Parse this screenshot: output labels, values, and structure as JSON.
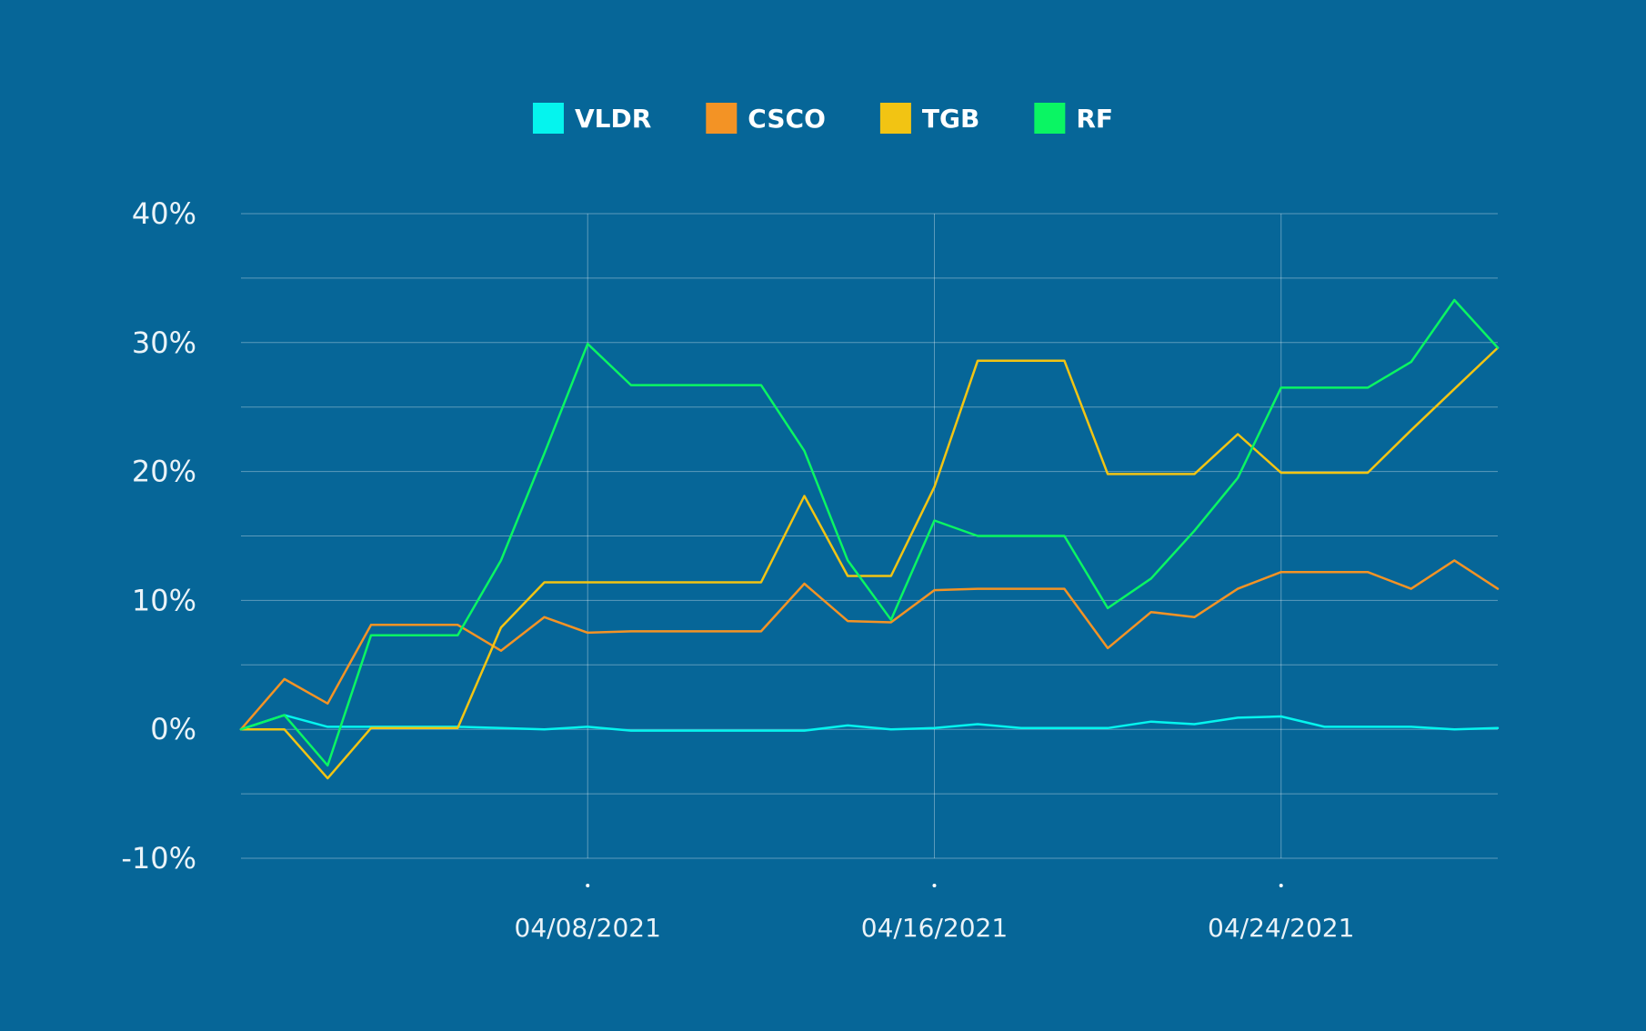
{
  "chart_data": {
    "type": "line",
    "title": "",
    "xlabel": "",
    "ylabel": "",
    "x": [
      "03/31/2021",
      "04/01/2021",
      "04/02/2021",
      "04/03/2021",
      "04/04/2021",
      "04/05/2021",
      "04/06/2021",
      "04/07/2021",
      "04/08/2021",
      "04/09/2021",
      "04/10/2021",
      "04/11/2021",
      "04/12/2021",
      "04/13/2021",
      "04/14/2021",
      "04/15/2021",
      "04/16/2021",
      "04/17/2021",
      "04/18/2021",
      "04/19/2021",
      "04/20/2021",
      "04/21/2021",
      "04/22/2021",
      "04/23/2021",
      "04/24/2021",
      "04/25/2021",
      "04/26/2021",
      "04/27/2021",
      "04/28/2021",
      "04/29/2021"
    ],
    "x_ticks": [
      "04/08/2021",
      "04/16/2021",
      "04/24/2021"
    ],
    "x_tick_labels": [
      "04/08/2021",
      "04/16/2021",
      "04/24/2021"
    ],
    "y_ticks": [
      40,
      30,
      20,
      10,
      0,
      -10
    ],
    "y_tick_labels": [
      "40%",
      "30%",
      "20%",
      "10%",
      "0%",
      "-10%"
    ],
    "ylim": [
      -10,
      40
    ],
    "grid": true,
    "legend_position": "top",
    "series": [
      {
        "name": "VLDR",
        "color": "#05f4ee",
        "values": [
          0,
          1.1,
          0.2,
          0.2,
          0.2,
          0.2,
          0.1,
          0,
          0.2,
          -0.1,
          -0.1,
          -0.1,
          -0.1,
          -0.1,
          0.3,
          0,
          0.1,
          0.4,
          0.1,
          0.1,
          0.1,
          0.6,
          0.4,
          0.9,
          1,
          0.2,
          0.2,
          0.2,
          0,
          0.1
        ]
      },
      {
        "name": "CSCO",
        "color": "#f39325",
        "values": [
          0,
          3.9,
          2.0,
          8.1,
          8.1,
          8.1,
          6.1,
          8.7,
          7.5,
          7.6,
          7.6,
          7.6,
          7.6,
          11.3,
          8.4,
          8.3,
          10.8,
          10.9,
          10.9,
          10.9,
          6.3,
          9.1,
          8.7,
          10.9,
          12.2,
          12.2,
          12.2,
          10.9,
          13.1,
          10.9
        ]
      },
      {
        "name": "TGB",
        "color": "#f2c413",
        "values": [
          0,
          0,
          -3.8,
          0.1,
          0.1,
          0.1,
          7.9,
          11.4,
          11.4,
          11.4,
          11.4,
          11.4,
          11.4,
          18.1,
          11.9,
          11.9,
          18.8,
          28.6,
          28.6,
          28.6,
          19.8,
          19.8,
          19.8,
          22.9,
          19.9,
          19.9,
          19.9,
          23.2,
          26.4,
          29.6
        ]
      },
      {
        "name": "RF",
        "color": "#0af563",
        "values": [
          0,
          1.1,
          -2.8,
          7.3,
          7.3,
          7.3,
          13.1,
          21.4,
          29.9,
          26.7,
          26.7,
          26.7,
          26.7,
          21.6,
          13.1,
          8.5,
          16.2,
          15.0,
          15.0,
          15.0,
          9.4,
          11.7,
          15.4,
          19.5,
          26.5,
          26.5,
          26.5,
          28.5,
          33.3,
          29.6
        ]
      }
    ]
  }
}
